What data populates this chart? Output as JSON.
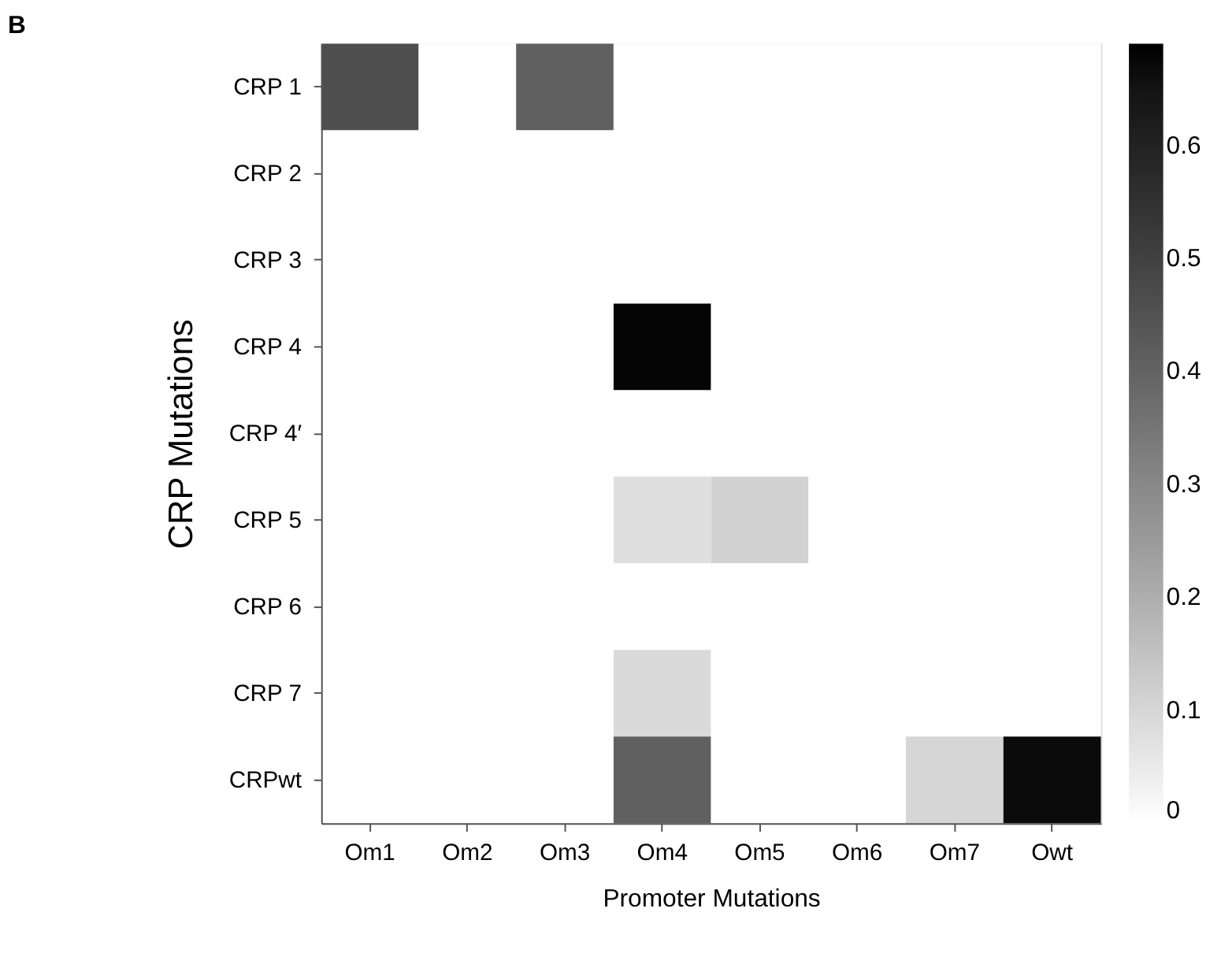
{
  "chart_data": {
    "type": "heatmap",
    "title": "B",
    "xlabel": "Promoter Mutations",
    "ylabel": "CRP Mutations",
    "categories": [
      "Om1",
      "Om2",
      "Om3",
      "Om4",
      "Om5",
      "Om6",
      "Om7",
      "Owt"
    ],
    "y_categories": [
      "CRP 1",
      "CRP 2",
      "CRP 3",
      "CRP 4",
      "CRP 4′",
      "CRP 5",
      "CRP 6",
      "CRP 7",
      "CRPwt"
    ],
    "cells": [
      [
        0.46,
        0,
        0.41,
        0,
        0,
        0,
        0,
        0
      ],
      [
        0,
        0,
        0,
        0,
        0,
        0,
        0,
        0
      ],
      [
        0,
        0,
        0,
        0,
        0,
        0,
        0,
        0
      ],
      [
        0,
        0,
        0,
        0.68,
        0,
        0,
        0,
        0
      ],
      [
        0,
        0,
        0,
        0,
        0,
        0,
        0,
        0
      ],
      [
        0,
        0,
        0,
        0.08,
        0.11,
        0,
        0,
        0
      ],
      [
        0,
        0,
        0,
        0,
        0,
        0,
        0,
        0
      ],
      [
        0,
        0,
        0,
        0.09,
        0,
        0,
        0,
        0
      ],
      [
        0,
        0,
        0,
        0.41,
        0,
        0,
        0.1,
        0.67
      ]
    ],
    "clim": [
      0,
      0.69
    ],
    "cticks": [
      0,
      0.1,
      0.2,
      0.3,
      0.4,
      0.5,
      0.6
    ],
    "colors": [
      "#ffffff",
      "#000000"
    ]
  }
}
